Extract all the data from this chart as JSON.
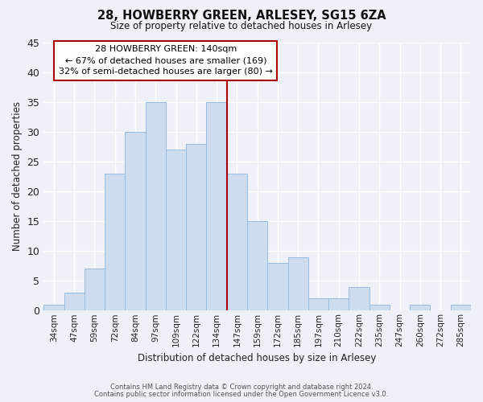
{
  "title": "28, HOWBERRY GREEN, ARLESEY, SG15 6ZA",
  "subtitle": "Size of property relative to detached houses in Arlesey",
  "xlabel": "Distribution of detached houses by size in Arlesey",
  "ylabel": "Number of detached properties",
  "bar_labels": [
    "34sqm",
    "47sqm",
    "59sqm",
    "72sqm",
    "84sqm",
    "97sqm",
    "109sqm",
    "122sqm",
    "134sqm",
    "147sqm",
    "159sqm",
    "172sqm",
    "185sqm",
    "197sqm",
    "210sqm",
    "222sqm",
    "235sqm",
    "247sqm",
    "260sqm",
    "272sqm",
    "285sqm"
  ],
  "bar_values": [
    1,
    3,
    7,
    23,
    30,
    35,
    27,
    28,
    35,
    23,
    15,
    8,
    9,
    2,
    2,
    4,
    1,
    0,
    1,
    0,
    1
  ],
  "bar_color": "#ccddf0",
  "bar_edge_color": "#99bbdd",
  "vline_color": "#aa0000",
  "vline_index": 9,
  "ylim": [
    0,
    45
  ],
  "yticks": [
    0,
    5,
    10,
    15,
    20,
    25,
    30,
    35,
    40,
    45
  ],
  "annotation_title": "28 HOWBERRY GREEN: 140sqm",
  "annotation_line1": "← 67% of detached houses are smaller (169)",
  "annotation_line2": "32% of semi-detached houses are larger (80) →",
  "annotation_box_color": "#ffffff",
  "annotation_box_edge": "#aa0000",
  "footer1": "Contains HM Land Registry data © Crown copyright and database right 2024.",
  "footer2": "Contains public sector information licensed under the Open Government Licence v3.0.",
  "bg_color": "#eef2f8",
  "grid_color": "#ffffff",
  "tick_label_color": "#222222",
  "axis_label_color": "#222222"
}
